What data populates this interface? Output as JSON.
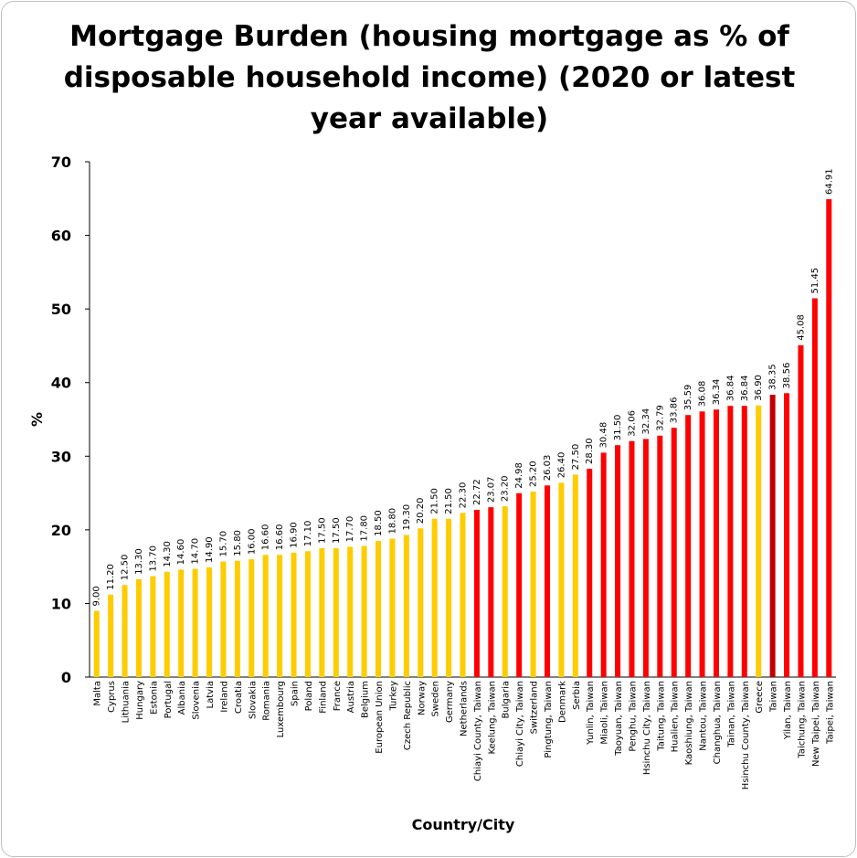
{
  "chart_data": {
    "type": "bar",
    "title": "Mortgage Burden (housing mortgage as % of disposable household income) (2020 or latest year available)",
    "xlabel": "Country/City",
    "ylabel": "%",
    "ylim": [
      0,
      70
    ],
    "yticks": [
      0,
      10,
      20,
      30,
      40,
      50,
      60,
      70
    ],
    "grid": false,
    "colors": {
      "country": "#FFCC00",
      "city": "#FF0000",
      "taiwan": "#C00000",
      "axis": "#000000"
    },
    "categories": [
      "Malta",
      "Cyprus",
      "Lithuania",
      "Hungary",
      "Estonia",
      "Portugal",
      "Albania",
      "Slovenia",
      "Latvia",
      "Ireland",
      "Croatia",
      "Slovakia",
      "Romania",
      "Luxembourg",
      "Spain",
      "Poland",
      "Finland",
      "France",
      "Austria",
      "Belgium",
      "European Union",
      "Turkey",
      "Czech Republic",
      "Norway",
      "Sweden",
      "Germany",
      "Netherlands",
      "Chiayi County, Taiwan",
      "Keelung, Taiwan",
      "Bulgaria",
      "Chiayi City, Taiwan",
      "Switzerland",
      "Pingtung, Taiwan",
      "Denmark",
      "Serbia",
      "Yunlin, Taiwan",
      "Miaoli, Taiwan",
      "Taoyuan, Taiwan",
      "Penghu, Taiwan",
      "Hsinchu City, Taiwan",
      "Taitung, Taiwan",
      "Hualien, Taiwan",
      "Kaoshiung, Taiwan",
      "Nantou, Taiwan",
      "Changhua, Taiwan",
      "Tainan, Taiwan",
      "Hsinchu County, Taiwan",
      "Greece",
      "Taiwan",
      "Yilan, Taiwan",
      "Taichung, Taiwan",
      "New Taipei, Taiwan",
      "Taipei, Taiwan"
    ],
    "values": [
      9.0,
      11.2,
      12.5,
      13.3,
      13.7,
      14.3,
      14.6,
      14.7,
      14.9,
      15.7,
      15.8,
      16.0,
      16.6,
      16.6,
      16.9,
      17.1,
      17.5,
      17.5,
      17.7,
      17.8,
      18.5,
      18.8,
      19.3,
      20.2,
      21.5,
      21.5,
      22.3,
      22.72,
      23.07,
      23.2,
      24.98,
      25.2,
      26.03,
      26.4,
      27.5,
      28.3,
      30.48,
      31.5,
      32.06,
      32.34,
      32.79,
      33.86,
      35.59,
      36.08,
      36.34,
      36.84,
      36.84,
      36.9,
      38.35,
      38.56,
      45.08,
      51.45,
      64.91
    ],
    "labels": [
      "9.00",
      "11.20",
      "12.50",
      "13.30",
      "13.70",
      "14.30",
      "14.60",
      "14.70",
      "14.90",
      "15.70",
      "15.80",
      "16.00",
      "16.60",
      "16.60",
      "16.90",
      "17.10",
      "17.50",
      "17.50",
      "17.70",
      "17.80",
      "18.50",
      "18.80",
      "19.30",
      "20.20",
      "21.50",
      "21.50",
      "22.30",
      "22.72",
      "23.07",
      "23.20",
      "24.98",
      "25.20",
      "26.03",
      "26.40",
      "27.50",
      "28.30",
      "30.48",
      "31.50",
      "32.06",
      "32.34",
      "32.79",
      "33.86",
      "35.59",
      "36.08",
      "36.34",
      "36.84",
      "36.84",
      "36.90",
      "38.35",
      "38.56",
      "45.08",
      "51.45",
      "64.91"
    ],
    "groups": [
      "country",
      "country",
      "country",
      "country",
      "country",
      "country",
      "country",
      "country",
      "country",
      "country",
      "country",
      "country",
      "country",
      "country",
      "country",
      "country",
      "country",
      "country",
      "country",
      "country",
      "country",
      "country",
      "country",
      "country",
      "country",
      "country",
      "country",
      "city",
      "city",
      "country",
      "city",
      "country",
      "city",
      "country",
      "country",
      "city",
      "city",
      "city",
      "city",
      "city",
      "city",
      "city",
      "city",
      "city",
      "city",
      "city",
      "city",
      "country",
      "taiwan",
      "city",
      "city",
      "city",
      "city"
    ]
  }
}
